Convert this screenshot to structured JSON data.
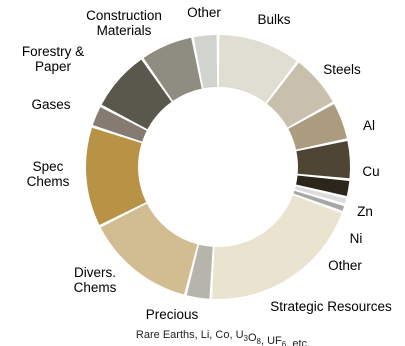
{
  "chart_data": {
    "type": "pie",
    "subtype": "donut",
    "title": "",
    "start": "top",
    "direction": "clockwise",
    "slices": [
      {
        "label": "Bulks",
        "value": 10.0,
        "color": "#e0ddd3"
      },
      {
        "label": "Steels",
        "value": 6.4,
        "color": "#c8bfac"
      },
      {
        "label": "Al",
        "value": 4.6,
        "color": "#ab9c80"
      },
      {
        "label": "Cu",
        "value": 4.7,
        "color": "#4e4535"
      },
      {
        "label": "Zn",
        "value": 2.1,
        "color": "#2b251b"
      },
      {
        "label": "Ni",
        "value": 0.9,
        "color": "#dcdcdc"
      },
      {
        "label": "Other",
        "value": 0.9,
        "color": "#a7a7a7"
      },
      {
        "label": "Strategic Resources",
        "value": 19.7,
        "color": "#e9e3cf"
      },
      {
        "label": "Precious",
        "value": 3.0,
        "color": "#b5b5ab"
      },
      {
        "label": "Divers. Chems",
        "value": 13.2,
        "color": "#d2bd92"
      },
      {
        "label": "Spec Chems",
        "value": 12.0,
        "color": "#b89346"
      },
      {
        "label": "Gases",
        "value": 2.6,
        "color": "#857b70"
      },
      {
        "label": "Forestry & Paper",
        "value": 7.4,
        "color": "#5a574c"
      },
      {
        "label": "Construction Materials",
        "value": 6.4,
        "color": "#8f8c81"
      },
      {
        "label": "Other",
        "value": 3.0,
        "color": "#d2d2cf"
      }
    ],
    "labels": [
      {
        "lines": [
          "Bulks"
        ]
      },
      {
        "lines": [
          "Steels"
        ]
      },
      {
        "lines": [
          "Al"
        ]
      },
      {
        "lines": [
          "Cu"
        ]
      },
      {
        "lines": [
          "Zn"
        ]
      },
      {
        "lines": [
          "Ni"
        ]
      },
      {
        "lines": [
          "Other"
        ]
      },
      {
        "lines": [
          "Strategic Resources"
        ]
      },
      {
        "lines": [
          "Precious"
        ]
      },
      {
        "lines": [
          "Divers.",
          "Chems"
        ]
      },
      {
        "lines": [
          "Spec",
          "Chems"
        ]
      },
      {
        "lines": [
          "Gases"
        ]
      },
      {
        "lines": [
          "Forestry &",
          "Paper"
        ]
      },
      {
        "lines": [
          "Construction",
          "Materials"
        ]
      },
      {
        "lines": [
          "Other"
        ]
      }
    ],
    "note": {
      "segments": [
        {
          "text": "Rare Earths, Li, Co, U"
        },
        {
          "text": "3",
          "sub": true
        },
        {
          "text": "O"
        },
        {
          "text": "8",
          "sub": true
        },
        {
          "text": ", UF"
        },
        {
          "text": "6",
          "sub": true
        },
        {
          "text": ", etc."
        }
      ]
    }
  }
}
